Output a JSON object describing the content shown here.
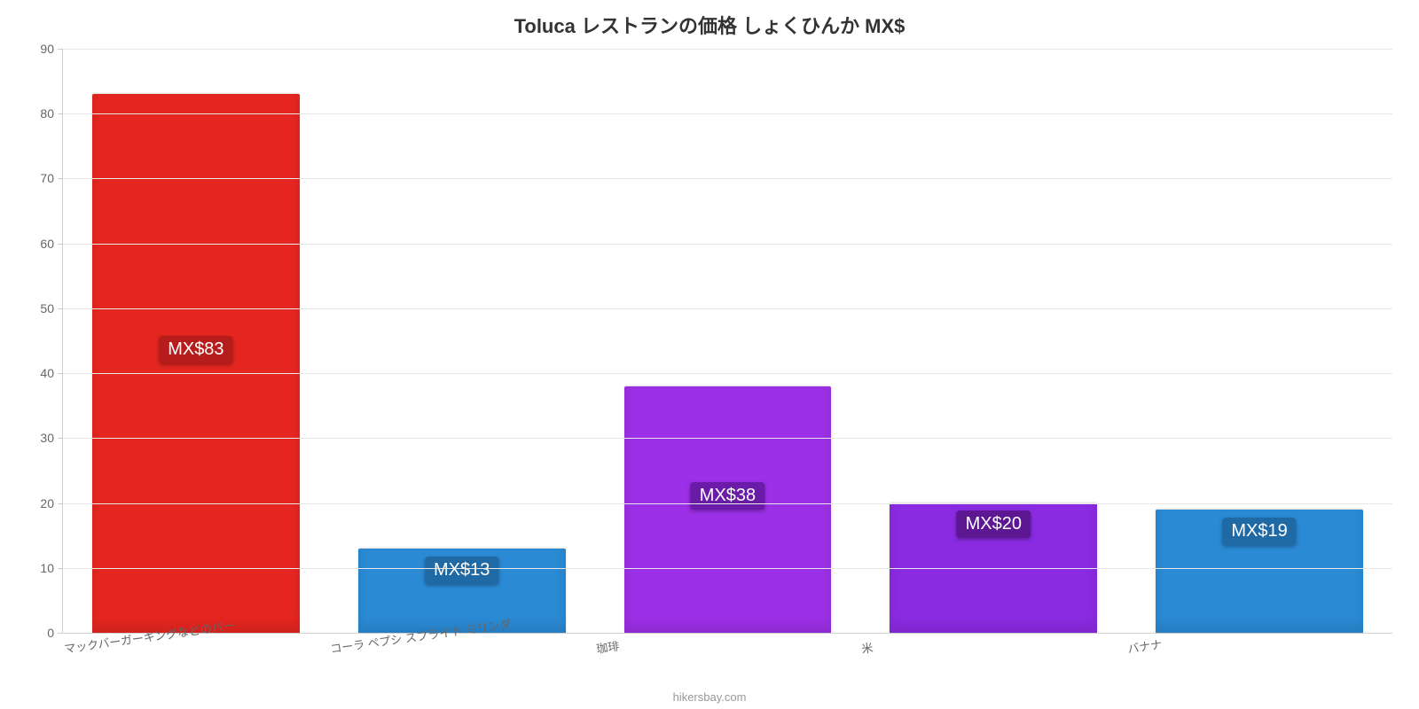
{
  "chart": {
    "type": "bar",
    "title": "Toluca レストランの価格 しょくひんか MX$",
    "title_fontsize": 22,
    "title_color": "#333333",
    "background_color": "#ffffff",
    "grid_color": "#e8e8e8",
    "axis_color": "#d0d0d0",
    "ylim": [
      0,
      90
    ],
    "ytick_step": 10,
    "ytick_fontsize": 14,
    "ytick_color": "#666666",
    "xlabel_fontsize": 13,
    "xlabel_color": "#666666",
    "xlabel_rotate_deg": -8,
    "bar_width_ratio": 0.78,
    "bar_label_fontsize": 20,
    "bar_label_text_color": "#ffffff",
    "categories": [
      "マックバーガーキングなどのバー",
      "コーラ ペプシ スプライト ミリンダ",
      "珈琲",
      "米",
      "バナナ"
    ],
    "values": [
      83,
      13,
      38,
      20,
      19
    ],
    "value_labels": [
      "MX$83",
      "MX$13",
      "MX$38",
      "MX$20",
      "MX$19"
    ],
    "bar_colors": [
      "#e52620",
      "#2a8ad4",
      "#9b30e6",
      "#8a2be2",
      "#2a8ad4"
    ],
    "bar_label_bg_colors": [
      "#b71c1c",
      "#1f6aa5",
      "#6a1ba8",
      "#5e1793",
      "#1f6aa5"
    ],
    "attribution": "hikersbay.com",
    "attribution_fontsize": 13,
    "attribution_color": "#999999"
  }
}
